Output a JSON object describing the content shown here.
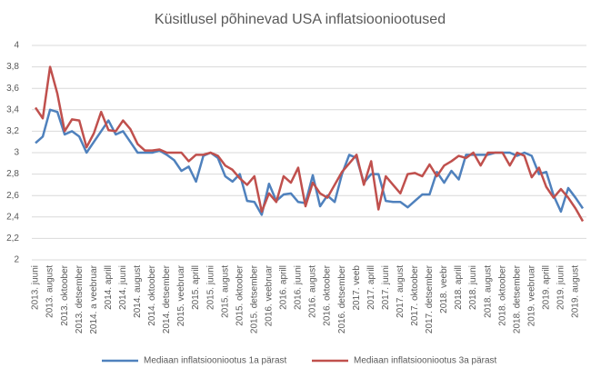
{
  "chart_data": {
    "type": "line",
    "title": "Küsitlusel põhinevad USA inflatsiooniootused",
    "categories": [
      "2013. juuni",
      null,
      "2013. august",
      null,
      "2013. oktoober",
      null,
      "2013. detsember",
      null,
      "2014. a veebruar",
      null,
      "2014. aprill",
      null,
      "2014. juuni",
      null,
      "2014. august",
      null,
      "2014. oktoober",
      null,
      "2014. detsember",
      null,
      "2015. veebruar",
      null,
      "2015. aprill",
      null,
      "2015. juuni",
      null,
      "2015. august",
      null,
      "2015. oktoober",
      null,
      "2015. detsember",
      null,
      "2016. veebruar",
      null,
      "2016. aprill",
      null,
      "2016. juuni",
      null,
      "2016. august",
      null,
      "2016. oktoober",
      null,
      "2016. detsember",
      null,
      "2017. veeb",
      null,
      "2017. aprill",
      null,
      "2017. juuni",
      null,
      "2017. august",
      null,
      "2017. oktoober",
      null,
      "2017. detsember",
      null,
      "2018. veebr",
      null,
      "2018. aprill",
      null,
      "2018. juuni",
      null,
      "2018. august",
      null,
      "2018. oktoober",
      null,
      "2018. detsember",
      null,
      "2019. veebruar",
      null,
      "2019. aprill",
      null,
      "2019. juuni",
      null,
      "2019. august",
      null
    ],
    "series": [
      {
        "name": "Mediaan inflatsiooniootus 1a pärast",
        "color": "#4f81bd",
        "values": [
          3.09,
          3.15,
          3.4,
          3.38,
          3.17,
          3.2,
          3.15,
          3.0,
          3.1,
          3.2,
          3.3,
          3.17,
          3.2,
          3.1,
          3.0,
          3.0,
          3.0,
          3.02,
          2.98,
          2.93,
          2.83,
          2.87,
          2.73,
          2.97,
          3.0,
          2.95,
          2.78,
          2.73,
          2.8,
          2.55,
          2.54,
          2.42,
          2.71,
          2.55,
          2.61,
          2.62,
          2.54,
          2.53,
          2.79,
          2.5,
          2.6,
          2.54,
          2.8,
          2.98,
          2.95,
          2.72,
          2.8,
          2.8,
          2.55,
          2.54,
          2.54,
          2.49,
          2.55,
          2.61,
          2.61,
          2.82,
          2.72,
          2.83,
          2.75,
          2.98,
          2.98,
          2.98,
          2.98,
          3.0,
          3.0,
          3.0,
          2.97,
          3.0,
          2.97,
          2.8,
          2.82,
          2.6,
          2.45,
          2.67,
          2.58,
          2.48
        ]
      },
      {
        "name": "Mediaan inflatsiooniootus 3a pärast",
        "color": "#c0504d",
        "values": [
          3.42,
          3.32,
          3.8,
          3.55,
          3.2,
          3.31,
          3.3,
          3.05,
          3.18,
          3.38,
          3.21,
          3.2,
          3.3,
          3.22,
          3.08,
          3.02,
          3.02,
          3.03,
          3.0,
          3.0,
          3.0,
          2.92,
          2.98,
          2.98,
          3.0,
          2.97,
          2.88,
          2.84,
          2.76,
          2.7,
          2.78,
          2.45,
          2.62,
          2.54,
          2.78,
          2.72,
          2.86,
          2.5,
          2.72,
          2.62,
          2.58,
          2.7,
          2.82,
          2.9,
          2.98,
          2.7,
          2.92,
          2.47,
          2.78,
          2.7,
          2.62,
          2.8,
          2.81,
          2.78,
          2.89,
          2.78,
          2.88,
          2.92,
          2.97,
          2.95,
          3.0,
          2.88,
          3.0,
          3.0,
          3.0,
          2.88,
          3.0,
          2.97,
          2.77,
          2.86,
          2.68,
          2.58,
          2.66,
          2.58,
          2.48,
          2.36
        ]
      }
    ],
    "ylim": [
      2,
      4
    ],
    "yticks": [
      2,
      {
        "value": 2.2,
        "label": "2,2"
      },
      {
        "value": 2.4,
        "label": "2,4"
      },
      {
        "value": 2.6,
        "label": "2,6"
      },
      {
        "value": 2.8,
        "label": "2,8"
      },
      3,
      {
        "value": 3.2,
        "label": "3,2"
      },
      {
        "value": 3.4,
        "label": "3,4"
      },
      {
        "value": 3.6,
        "label": "3,6"
      },
      {
        "value": 3.8,
        "label": "3,8"
      },
      4
    ],
    "grid": true,
    "legend": "bottom"
  }
}
